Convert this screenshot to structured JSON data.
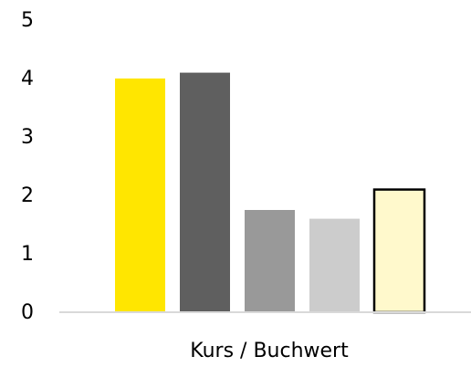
{
  "chart_data": {
    "type": "bar",
    "categories": [
      null,
      null,
      null,
      null,
      null
    ],
    "values": [
      4.0,
      4.1,
      1.75,
      1.6,
      2.1
    ],
    "colors": [
      "#ffe600",
      "#5f5f5f",
      "#999999",
      "#cccccc",
      "#fff9cc"
    ],
    "outlined": [
      false,
      false,
      false,
      false,
      true
    ],
    "xlabel": "Kurs / Buchwert",
    "ylim": [
      0,
      5
    ],
    "yticks": [
      0,
      1,
      2,
      3,
      4,
      5
    ],
    "grid": false
  }
}
